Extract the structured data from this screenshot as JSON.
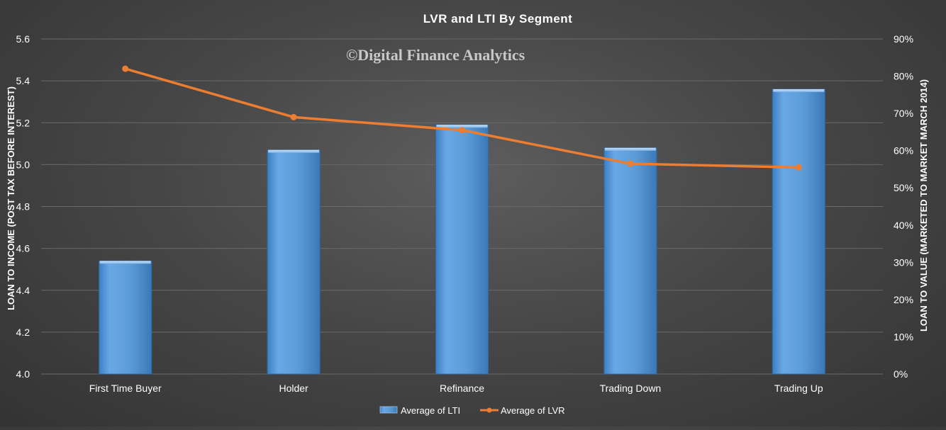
{
  "chart_data": {
    "type": "bar",
    "title": "LVR and LTI By Segment",
    "watermark": "©Digital Finance Analytics",
    "categories": [
      "First Time Buyer",
      "Holder",
      "Refinance",
      "Trading Down",
      "Trading Up"
    ],
    "series": [
      {
        "name": "Average of LTI",
        "type": "bar",
        "axis": "left",
        "values": [
          4.54,
          5.07,
          5.19,
          5.08,
          5.36
        ]
      },
      {
        "name": "Average of LVR",
        "type": "line",
        "axis": "right",
        "values": [
          0.82,
          0.69,
          0.655,
          0.565,
          0.555
        ]
      }
    ],
    "ylabel": "LOAN TO INCOME (POST TAX BEFORE INTEREST)",
    "y2label": "LOAN TO VALUE (MARKETED TO MARKET MARCH 2014)",
    "ylim": [
      4.0,
      5.6
    ],
    "y2lim": [
      0,
      0.9
    ],
    "yticks": [
      "4.0",
      "4.2",
      "4.4",
      "4.6",
      "4.8",
      "5.0",
      "5.2",
      "5.4",
      "5.6"
    ],
    "y2ticks": [
      "0%",
      "10%",
      "20%",
      "30%",
      "40%",
      "50%",
      "60%",
      "70%",
      "80%",
      "90%"
    ],
    "grid": true,
    "legend_position": "bottom",
    "colors": {
      "bar": "#5b9bd5",
      "line": "#ed7d31",
      "grid": "#6a6a6a",
      "text": "#ffffff"
    }
  }
}
